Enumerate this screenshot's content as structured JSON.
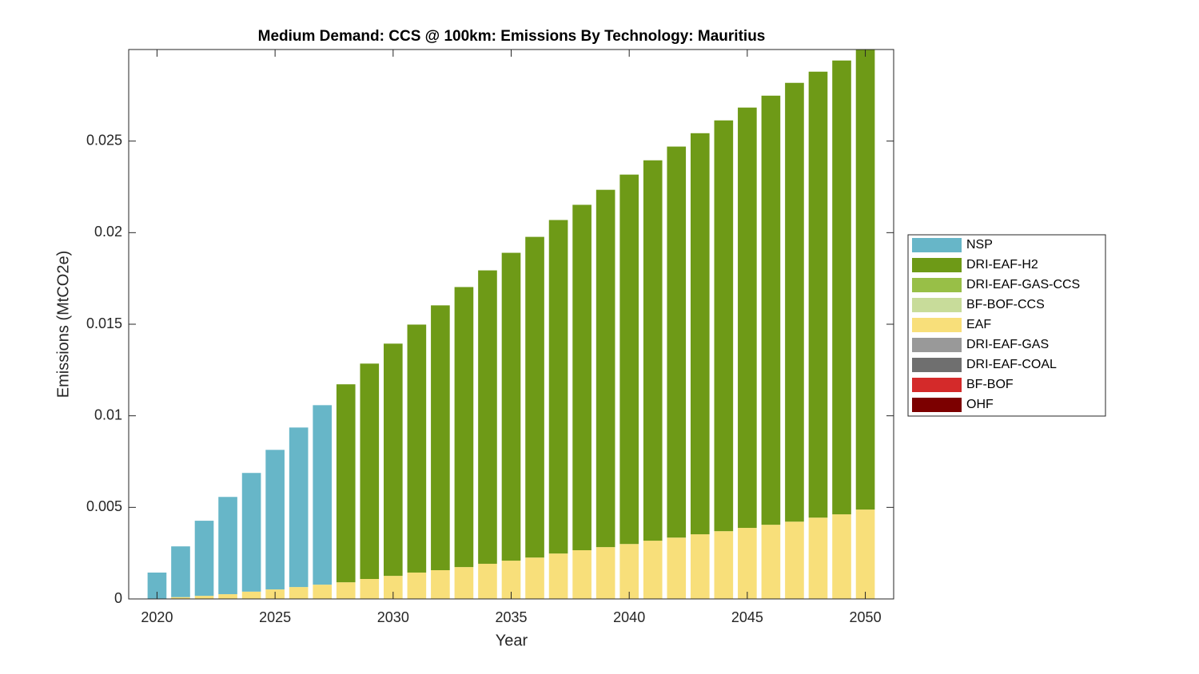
{
  "chart_data": {
    "type": "stacked_bar",
    "title": "Medium Demand: CCS @ 100km: Emissions By Technology: Mauritius",
    "x_label": "Year",
    "y_label": "Emissions (MtCO2e)",
    "x": [
      2020,
      2021,
      2022,
      2023,
      2024,
      2025,
      2026,
      2027,
      2028,
      2029,
      2030,
      2031,
      2032,
      2033,
      2034,
      2035,
      2036,
      2037,
      2038,
      2039,
      2040,
      2041,
      2042,
      2043,
      2044,
      2045,
      2046,
      2047,
      2048,
      2049,
      2050
    ],
    "xlim": [
      2018.8,
      2051.2
    ],
    "xticks": [
      2020,
      2025,
      2030,
      2035,
      2040,
      2045,
      2050
    ],
    "ylim": [
      0,
      0.03
    ],
    "yticks": [
      0,
      0.005,
      0.01,
      0.015,
      0.02,
      0.025
    ],
    "series": [
      {
        "name": "NSP",
        "color": "#67b6c8",
        "values": [
          0.00144,
          0.00277,
          0.0041,
          0.00531,
          0.00648,
          0.00762,
          0.00871,
          0.0098,
          0,
          0,
          0,
          0,
          0,
          0,
          0,
          0,
          0,
          0,
          0,
          0,
          0,
          0,
          0,
          0,
          0,
          0,
          0,
          0,
          0,
          0,
          0
        ]
      },
      {
        "name": "DRI-EAF-H2",
        "color": "#6e9a17",
        "values": [
          0,
          0,
          0,
          0,
          0,
          0,
          0,
          0,
          0.01081,
          0.01176,
          0.01268,
          0.01354,
          0.01446,
          0.01529,
          0.01602,
          0.01681,
          0.01751,
          0.01821,
          0.01886,
          0.01951,
          0.02017,
          0.02077,
          0.02135,
          0.0219,
          0.02243,
          0.02295,
          0.02343,
          0.02396,
          0.02435,
          0.02478,
          0.02517
        ]
      },
      {
        "name": "DRI-EAF-GAS-CCS",
        "color": "#98bf47",
        "values": [
          0,
          0,
          0,
          0,
          0,
          0,
          0,
          0,
          0,
          0,
          0,
          0,
          0,
          0,
          0,
          0,
          0,
          0,
          0,
          0,
          0,
          0,
          0,
          0,
          0,
          0,
          0,
          0,
          0,
          0,
          0
        ]
      },
      {
        "name": "BF-BOF-CCS",
        "color": "#c8dc9a",
        "values": [
          0,
          0,
          0,
          0,
          0,
          0,
          0,
          0,
          0,
          0,
          0,
          0,
          0,
          0,
          0,
          0,
          0,
          0,
          0,
          0,
          0,
          0,
          0,
          0,
          0,
          0,
          0,
          0,
          0,
          0,
          0
        ]
      },
      {
        "name": "EAF",
        "color": "#f8df7a",
        "values": [
          0,
          0.0001,
          0.00017,
          0.00026,
          0.0004,
          0.00052,
          0.00065,
          0.00078,
          0.00091,
          0.00109,
          0.00126,
          0.00144,
          0.00157,
          0.00174,
          0.00192,
          0.00209,
          0.00226,
          0.00248,
          0.00266,
          0.00283,
          0.003,
          0.00318,
          0.00335,
          0.00353,
          0.0037,
          0.00388,
          0.00405,
          0.00422,
          0.00444,
          0.00462,
          0.00488
        ]
      },
      {
        "name": "DRI-EAF-GAS",
        "color": "#999999",
        "values": [
          0,
          0,
          0,
          0,
          0,
          0,
          0,
          0,
          0,
          0,
          0,
          0,
          0,
          0,
          0,
          0,
          0,
          0,
          0,
          0,
          0,
          0,
          0,
          0,
          0,
          0,
          0,
          0,
          0,
          0,
          0
        ]
      },
      {
        "name": "DRI-EAF-COAL",
        "color": "#6f6f6f",
        "values": [
          0,
          0,
          0,
          0,
          0,
          0,
          0,
          0,
          0,
          0,
          0,
          0,
          0,
          0,
          0,
          0,
          0,
          0,
          0,
          0,
          0,
          0,
          0,
          0,
          0,
          0,
          0,
          0,
          0,
          0,
          0
        ]
      },
      {
        "name": "BF-BOF",
        "color": "#d42a2a",
        "values": [
          0,
          0,
          0,
          0,
          0,
          0,
          0,
          0,
          0,
          0,
          0,
          0,
          0,
          0,
          0,
          0,
          0,
          0,
          0,
          0,
          0,
          0,
          0,
          0,
          0,
          0,
          0,
          0,
          0,
          0,
          0
        ]
      },
      {
        "name": "OHF",
        "color": "#7c0000",
        "values": [
          0,
          0,
          0,
          0,
          0,
          0,
          0,
          0,
          0,
          0,
          0,
          0,
          0,
          0,
          0,
          0,
          0,
          0,
          0,
          0,
          0,
          0,
          0,
          0,
          0,
          0,
          0,
          0,
          0,
          0,
          0
        ]
      }
    ]
  }
}
